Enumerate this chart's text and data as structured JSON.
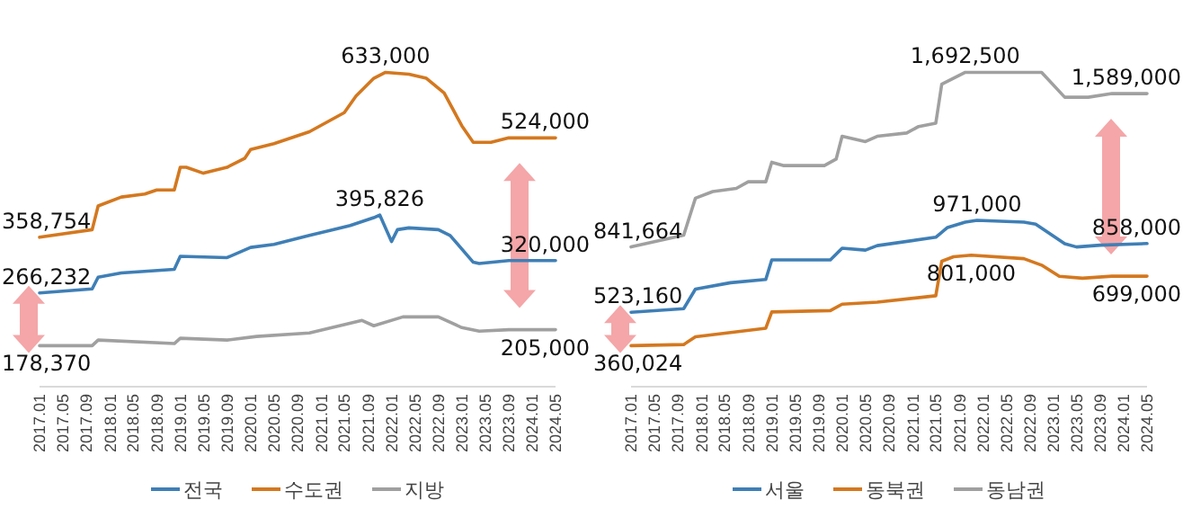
{
  "chart_data": [
    {
      "type": "line",
      "legend": "bottom",
      "tick_labels": "x",
      "xlim": [
        "2017-01",
        "2024-05"
      ],
      "xticks": [
        {
          "value": "2017-01",
          "label": "2017.01"
        },
        {
          "value": "2017-05",
          "label": "2017.05"
        },
        {
          "value": "2017-09",
          "label": "2017.09"
        },
        {
          "value": "2018-01",
          "label": "2018.01"
        },
        {
          "value": "2018-05",
          "label": "2018.05"
        },
        {
          "value": "2018-09",
          "label": "2018.09"
        },
        {
          "value": "2019-01",
          "label": "2019.01"
        },
        {
          "value": "2019-05",
          "label": "2019.05"
        },
        {
          "value": "2019-09",
          "label": "2019.09"
        },
        {
          "value": "2020-01",
          "label": "2020.01"
        },
        {
          "value": "2020-05",
          "label": "2020.05"
        },
        {
          "value": "2020-09",
          "label": "2020.09"
        },
        {
          "value": "2021-01",
          "label": "2021.01"
        },
        {
          "value": "2021-05",
          "label": "2021.05"
        },
        {
          "value": "2021-09",
          "label": "2021.09"
        },
        {
          "value": "2022-01",
          "label": "2022.01"
        },
        {
          "value": "2022-05",
          "label": "2022.05"
        },
        {
          "value": "2022-09",
          "label": "2022.09"
        },
        {
          "value": "2023-01",
          "label": "2023.01"
        },
        {
          "value": "2023-05",
          "label": "2023.05"
        },
        {
          "value": "2023-09",
          "label": "2023.09"
        },
        {
          "value": "2024-01",
          "label": "2024.01"
        },
        {
          "value": "2024-05",
          "label": "2024.05"
        }
      ],
      "series": [
        {
          "name": "전국",
          "color": "#3f7fb6",
          "x": [
            "2017-01",
            "2017-10",
            "2017-11",
            "2018-03",
            "2018-12",
            "2019-01",
            "2019-09",
            "2020-01",
            "2020-05",
            "2020-11",
            "2021-06",
            "2021-10",
            "2021-11",
            "2022-01",
            "2022-02",
            "2022-04",
            "2022-09",
            "2022-11",
            "2023-03",
            "2023-04",
            "2023-09",
            "2024-05"
          ],
          "values": [
            266232,
            272800,
            292300,
            299500,
            305400,
            327000,
            324900,
            341800,
            346800,
            361700,
            378200,
            391300,
            395826,
            351600,
            371400,
            374400,
            371400,
            361700,
            317200,
            315200,
            320000,
            320000
          ],
          "value_labels": [
            "266,232",
            null,
            null,
            null,
            null,
            null,
            null,
            null,
            null,
            null,
            null,
            null,
            "395,826",
            null,
            null,
            null,
            null,
            null,
            null,
            null,
            null,
            "320,000"
          ]
        },
        {
          "name": "수도권",
          "color": "#d4781f",
          "x": [
            "2017-01",
            "2017-10",
            "2017-11",
            "2018-03",
            "2018-07",
            "2018-09",
            "2018-12",
            "2019-01",
            "2019-02",
            "2019-05",
            "2019-09",
            "2019-12",
            "2020-01",
            "2020-05",
            "2020-11",
            "2021-05",
            "2021-07",
            "2021-10",
            "2021-12",
            "2022-04",
            "2022-07",
            "2022-10",
            "2023-01",
            "2023-03",
            "2023-06",
            "2023-09",
            "2024-05"
          ],
          "values": [
            358754,
            371400,
            410800,
            425600,
            430700,
            437400,
            437400,
            475100,
            475100,
            465300,
            475100,
            489900,
            504700,
            514500,
            534300,
            566000,
            593600,
            623200,
            633000,
            630000,
            623200,
            598600,
            544100,
            516600,
            516600,
            524000,
            524000
          ],
          "value_labels": [
            "358,754",
            null,
            null,
            null,
            null,
            null,
            null,
            null,
            null,
            null,
            null,
            null,
            null,
            null,
            null,
            null,
            null,
            null,
            "633,000",
            null,
            null,
            null,
            null,
            null,
            null,
            null,
            "524,000"
          ]
        },
        {
          "name": "지방",
          "color": "#a0a0a0",
          "x": [
            "2017-01",
            "2017-10",
            "2017-11",
            "2018-12",
            "2019-01",
            "2019-09",
            "2020-02",
            "2020-11",
            "2021-08",
            "2021-10",
            "2022-03",
            "2022-09",
            "2023-01",
            "2023-04",
            "2023-09",
            "2024-05"
          ],
          "values": [
            178370,
            178370,
            187800,
            181900,
            190700,
            187800,
            193700,
            199600,
            220400,
            211500,
            226300,
            226300,
            208500,
            202600,
            205000,
            205000
          ],
          "value_labels": [
            "178,370",
            null,
            null,
            null,
            null,
            null,
            null,
            null,
            null,
            null,
            null,
            null,
            null,
            null,
            null,
            "205,000"
          ]
        }
      ]
    },
    {
      "type": "line",
      "legend": "bottom",
      "tick_labels": "x",
      "xlim": [
        "2017-01",
        "2024-05"
      ],
      "xticks": [
        {
          "value": "2017-01",
          "label": "2017.01"
        },
        {
          "value": "2017-05",
          "label": "2017.05"
        },
        {
          "value": "2017-09",
          "label": "2017.09"
        },
        {
          "value": "2018-01",
          "label": "2018.01"
        },
        {
          "value": "2018-05",
          "label": "2018.05"
        },
        {
          "value": "2018-09",
          "label": "2018.09"
        },
        {
          "value": "2019-01",
          "label": "2019.01"
        },
        {
          "value": "2019-05",
          "label": "2019.05"
        },
        {
          "value": "2019-09",
          "label": "2019.09"
        },
        {
          "value": "2020-01",
          "label": "2020.01"
        },
        {
          "value": "2020-05",
          "label": "2020.05"
        },
        {
          "value": "2020-09",
          "label": "2020.09"
        },
        {
          "value": "2021-01",
          "label": "2021.01"
        },
        {
          "value": "2021-05",
          "label": "2021.05"
        },
        {
          "value": "2021-09",
          "label": "2021.09"
        },
        {
          "value": "2022-01",
          "label": "2022.01"
        },
        {
          "value": "2022-05",
          "label": "2022.05"
        },
        {
          "value": "2022-09",
          "label": "2022.09"
        },
        {
          "value": "2023-01",
          "label": "2023.01"
        },
        {
          "value": "2023-05",
          "label": "2023.05"
        },
        {
          "value": "2023-09",
          "label": "2023.09"
        },
        {
          "value": "2024-01",
          "label": "2024.01"
        },
        {
          "value": "2024-05",
          "label": "2024.05"
        }
      ],
      "series": [
        {
          "name": "서울",
          "color": "#3f7fb6",
          "x": [
            "2017-01",
            "2017-10",
            "2017-12",
            "2018-06",
            "2018-12",
            "2019-01",
            "2019-11",
            "2020-01",
            "2020-05",
            "2020-07",
            "2021-05",
            "2021-07",
            "2021-10",
            "2021-12",
            "2022-08",
            "2022-10",
            "2023-03",
            "2023-05",
            "2023-09",
            "2024-05"
          ],
          "values": [
            523160,
            540600,
            635700,
            667100,
            683300,
            778500,
            778500,
            835600,
            826100,
            848000,
            888900,
            936500,
            962200,
            971000,
            962200,
            952700,
            857500,
            841300,
            850000,
            858000
          ],
          "value_labels": [
            "523,160",
            null,
            null,
            null,
            null,
            null,
            null,
            null,
            null,
            null,
            null,
            null,
            null,
            "971,000",
            null,
            null,
            null,
            null,
            null,
            "858,000"
          ]
        },
        {
          "name": "동북권",
          "color": "#d4781f",
          "x": [
            "2017-01",
            "2017-10",
            "2017-12",
            "2018-12",
            "2019-01",
            "2019-11",
            "2020-01",
            "2020-07",
            "2021-05",
            "2021-06",
            "2021-08",
            "2021-11",
            "2022-08",
            "2022-11",
            "2023-02",
            "2023-06",
            "2023-11",
            "2024-05"
          ],
          "values": [
            360024,
            365500,
            403500,
            445400,
            524400,
            531000,
            562500,
            572000,
            603400,
            771800,
            793700,
            801000,
            784200,
            752800,
            698500,
            689000,
            699000,
            699000
          ],
          "value_labels": [
            "360,024",
            null,
            null,
            null,
            null,
            null,
            null,
            null,
            null,
            null,
            null,
            "801,000",
            null,
            null,
            null,
            null,
            null,
            "699,000"
          ]
        },
        {
          "name": "동남권",
          "color": "#a0a0a0",
          "x": [
            "2017-01",
            "2017-10",
            "2017-12",
            "2018-03",
            "2018-07",
            "2018-09",
            "2018-12",
            "2019-01",
            "2019-03",
            "2019-10",
            "2019-12",
            "2020-01",
            "2020-05",
            "2020-07",
            "2020-12",
            "2021-02",
            "2021-05",
            "2021-06",
            "2021-10",
            "2022-11",
            "2023-03",
            "2023-07",
            "2023-11",
            "2024-05"
          ],
          "values": [
            841664,
            898400,
            1079200,
            1111600,
            1126800,
            1159200,
            1159200,
            1254300,
            1238200,
            1238200,
            1269600,
            1380900,
            1355200,
            1380900,
            1397100,
            1428500,
            1444700,
            1635000,
            1692500,
            1692500,
            1571300,
            1571300,
            1589000,
            1589000
          ],
          "value_labels": [
            "841,664",
            null,
            null,
            null,
            null,
            null,
            null,
            null,
            null,
            null,
            null,
            null,
            null,
            null,
            null,
            null,
            null,
            null,
            "1,692,500",
            null,
            null,
            null,
            null,
            "1,589,000"
          ]
        }
      ]
    }
  ]
}
